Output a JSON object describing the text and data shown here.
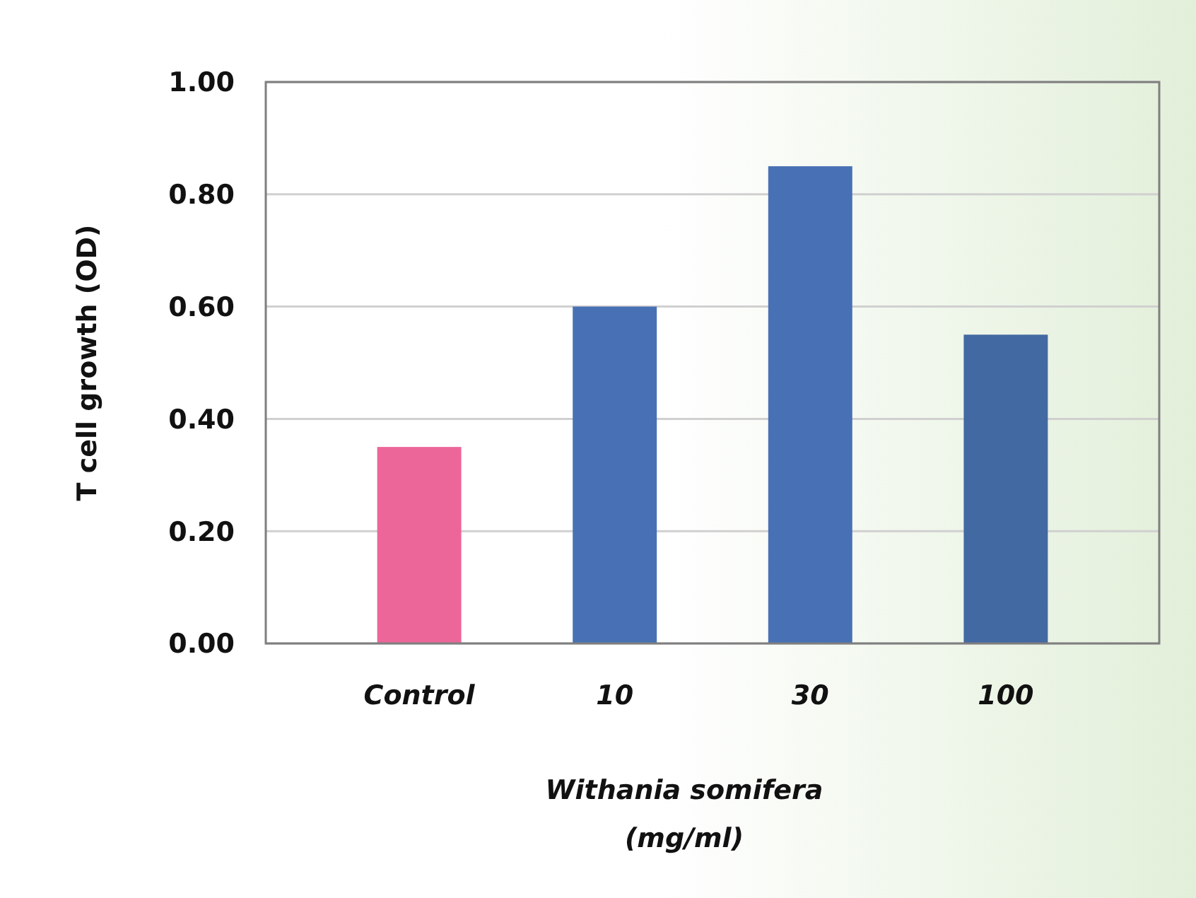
{
  "chart_data": {
    "type": "bar",
    "xlabel": "Withania somifera\n(mg/ml)",
    "ylabel": "T cell growth (OD)",
    "categories": [
      "Control",
      "10",
      "30",
      "100"
    ],
    "values": [
      0.35,
      0.6,
      0.85,
      0.55
    ],
    "colors": [
      "#ec6699",
      "#4870b4",
      "#4870b4",
      "#4269a2"
    ],
    "ylim": [
      0,
      1
    ],
    "yticks": [
      {
        "value": 0,
        "label": "0.00"
      },
      {
        "value": 0.2,
        "label": "0.20"
      },
      {
        "value": 0.4,
        "label": "0.40"
      },
      {
        "value": 0.6,
        "label": "0.60"
      },
      {
        "value": 0.8,
        "label": "0.80"
      },
      {
        "value": 1,
        "label": "1.00"
      }
    ],
    "grid": "y"
  }
}
